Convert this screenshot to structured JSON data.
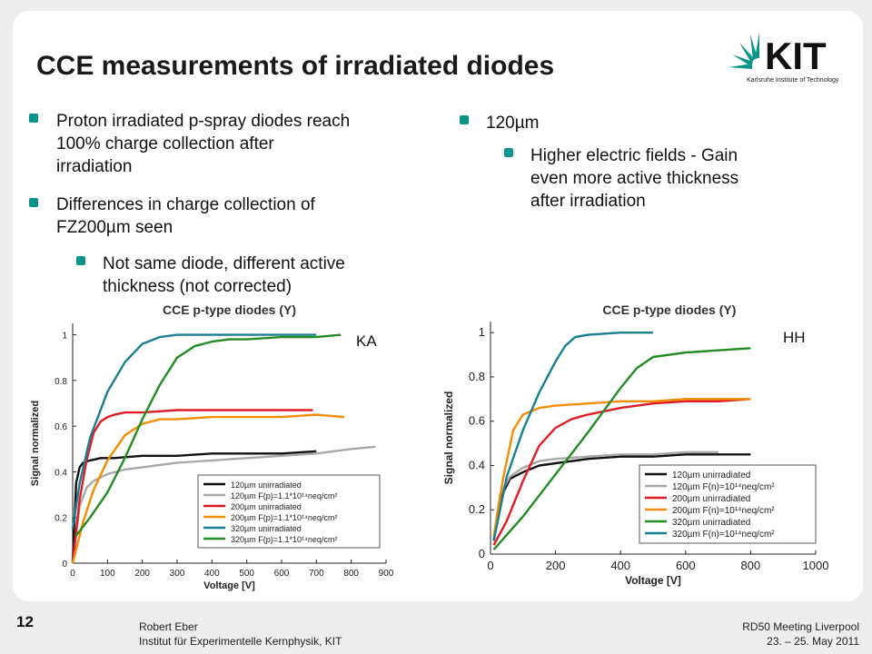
{
  "title": "CCE measurements of irradiated diodes",
  "logo": {
    "text": "KIT",
    "subtitle": "Karlsruhe Institute of Technology"
  },
  "left_bullets": [
    {
      "level": 1,
      "lines": [
        "Proton irradiated p-spray diodes reach",
        "100% charge collection after",
        "irradiation"
      ]
    },
    {
      "level": 1,
      "lines": [
        "Differences in charge collection of",
        "FZ200µm seen"
      ]
    },
    {
      "level": 2,
      "lines": [
        "Not same diode, different active",
        "thickness (not corrected)"
      ]
    }
  ],
  "right_bullets": [
    {
      "level": 1,
      "lines": [
        "120µm"
      ]
    },
    {
      "level": 2,
      "lines": [
        "Higher electric fields  - Gain",
        "even more active thickness",
        "after irradiation"
      ]
    }
  ],
  "colors": {
    "bullet": "#0d9488",
    "black": "#111111",
    "gray": "#a8a8a8",
    "red": "#e01b24",
    "orange": "#f28c00",
    "teal": "#1a7f8e",
    "green": "#228b22"
  },
  "chart_data": [
    {
      "type": "line",
      "tag": "KA",
      "title": "CCE p-type diodes (Y)",
      "xlabel": "Voltage [V]",
      "ylabel": "Signal normalized",
      "xlim": [
        0,
        900
      ],
      "ylim": [
        0,
        1.05
      ],
      "xticks": [
        0,
        100,
        200,
        300,
        400,
        500,
        600,
        700,
        800,
        900
      ],
      "yticks": [
        0,
        0.2,
        0.4,
        0.6,
        0.8,
        1
      ],
      "ytick_labels": [
        "0",
        "0.2",
        "0.4",
        "0.6",
        "0.8",
        "1"
      ],
      "legend": "bottom-right",
      "series": [
        {
          "name": "120µm unirradiated",
          "color": "#111111",
          "x": [
            0,
            10,
            20,
            30,
            50,
            80,
            120,
            200,
            300,
            400,
            500,
            600,
            700
          ],
          "y": [
            0,
            0.35,
            0.42,
            0.44,
            0.45,
            0.46,
            0.46,
            0.47,
            0.47,
            0.48,
            0.48,
            0.48,
            0.49
          ]
        },
        {
          "name": "120µm F(p)=1.1*10¹⁴neq/cm²",
          "color": "#a8a8a8",
          "x": [
            0,
            20,
            40,
            60,
            100,
            150,
            200,
            300,
            400,
            500,
            600,
            700,
            800,
            870
          ],
          "y": [
            0,
            0.25,
            0.33,
            0.36,
            0.39,
            0.41,
            0.42,
            0.44,
            0.45,
            0.46,
            0.47,
            0.48,
            0.5,
            0.51
          ]
        },
        {
          "name": "200µm unirradiated",
          "color": "#e01b24",
          "x": [
            0,
            20,
            40,
            60,
            80,
            100,
            120,
            150,
            200,
            300,
            400,
            500,
            600,
            690
          ],
          "y": [
            0,
            0.28,
            0.45,
            0.57,
            0.62,
            0.64,
            0.65,
            0.66,
            0.66,
            0.67,
            0.67,
            0.67,
            0.67,
            0.67
          ]
        },
        {
          "name": "200µm F(p)=1.1*10¹⁴neq/cm²",
          "color": "#f28c00",
          "x": [
            0,
            30,
            60,
            100,
            150,
            200,
            250,
            300,
            400,
            500,
            600,
            700,
            780
          ],
          "y": [
            0,
            0.18,
            0.32,
            0.45,
            0.56,
            0.61,
            0.63,
            0.63,
            0.64,
            0.64,
            0.64,
            0.65,
            0.64
          ]
        },
        {
          "name": "320µm unirradiated",
          "color": "#1a7f8e",
          "x": [
            0,
            20,
            50,
            100,
            150,
            200,
            250,
            300,
            350,
            400,
            500,
            600,
            700
          ],
          "y": [
            0.15,
            0.35,
            0.55,
            0.75,
            0.88,
            0.96,
            0.99,
            1.0,
            1.0,
            1.0,
            1.0,
            1.0,
            1.0
          ]
        },
        {
          "name": "320µm F(p)=1.1*10¹⁴neq/cm²",
          "color": "#228b22",
          "x": [
            10,
            50,
            100,
            150,
            200,
            250,
            300,
            350,
            400,
            450,
            500,
            600,
            700,
            770
          ],
          "y": [
            0.12,
            0.2,
            0.31,
            0.46,
            0.63,
            0.78,
            0.9,
            0.95,
            0.97,
            0.98,
            0.98,
            0.99,
            0.99,
            1.0
          ]
        }
      ]
    },
    {
      "type": "line",
      "tag": "HH",
      "title": "CCE p-type diodes (Y)",
      "xlabel": "Voltage [V]",
      "ylabel": "Signal normalized",
      "xlim": [
        0,
        1000
      ],
      "ylim": [
        0,
        1.05
      ],
      "xticks": [
        0,
        200,
        400,
        600,
        800,
        1000
      ],
      "yticks": [
        0,
        0.2,
        0.4,
        0.6,
        0.8,
        1
      ],
      "ytick_labels": [
        "0",
        "0.2",
        "0.4",
        "0.6",
        "0.8",
        "1"
      ],
      "legend": "bottom-right",
      "series": [
        {
          "name": "120µm unirradiated",
          "color": "#111111",
          "x": [
            10,
            30,
            60,
            100,
            150,
            200,
            300,
            400,
            500,
            600,
            700,
            800
          ],
          "y": [
            0.06,
            0.25,
            0.34,
            0.37,
            0.4,
            0.41,
            0.43,
            0.44,
            0.44,
            0.45,
            0.45,
            0.45
          ]
        },
        {
          "name": "120µm F(n)=10¹⁴neq/cm²",
          "color": "#a8a8a8",
          "x": [
            10,
            30,
            60,
            100,
            150,
            200,
            300,
            400,
            500,
            600,
            700
          ],
          "y": [
            0.08,
            0.27,
            0.35,
            0.39,
            0.42,
            0.43,
            0.44,
            0.45,
            0.45,
            0.46,
            0.46
          ]
        },
        {
          "name": "200µm unirradiated",
          "color": "#e01b24",
          "x": [
            10,
            50,
            100,
            150,
            200,
            250,
            300,
            400,
            500,
            600,
            700,
            800
          ],
          "y": [
            0.04,
            0.15,
            0.33,
            0.49,
            0.57,
            0.61,
            0.63,
            0.66,
            0.68,
            0.69,
            0.69,
            0.7
          ]
        },
        {
          "name": "200µm F(n)=10¹⁴neq/cm²",
          "color": "#f28c00",
          "x": [
            10,
            40,
            70,
            100,
            150,
            200,
            300,
            400,
            500,
            600,
            700,
            800
          ],
          "y": [
            0.08,
            0.35,
            0.56,
            0.63,
            0.66,
            0.67,
            0.68,
            0.69,
            0.69,
            0.7,
            0.7,
            0.7
          ]
        },
        {
          "name": "320µm unirradiated",
          "color": "#228b22",
          "x": [
            10,
            100,
            200,
            300,
            400,
            450,
            500,
            600,
            700,
            800
          ],
          "y": [
            0.02,
            0.17,
            0.36,
            0.55,
            0.75,
            0.84,
            0.89,
            0.91,
            0.92,
            0.93
          ]
        },
        {
          "name": "320µm F(n)=10¹⁴neq/cm²",
          "color": "#1a7f8e",
          "x": [
            10,
            50,
            100,
            150,
            200,
            230,
            260,
            300,
            400,
            500
          ],
          "y": [
            0.06,
            0.35,
            0.56,
            0.73,
            0.87,
            0.94,
            0.98,
            0.99,
            1.0,
            1.0
          ]
        }
      ]
    }
  ],
  "footer": {
    "page_number": "12",
    "author": "Robert Eber",
    "institute": "Institut für Experimentelle Kernphysik, KIT",
    "event": "RD50 Meeting Liverpool",
    "date": "23. – 25. May 2011"
  }
}
